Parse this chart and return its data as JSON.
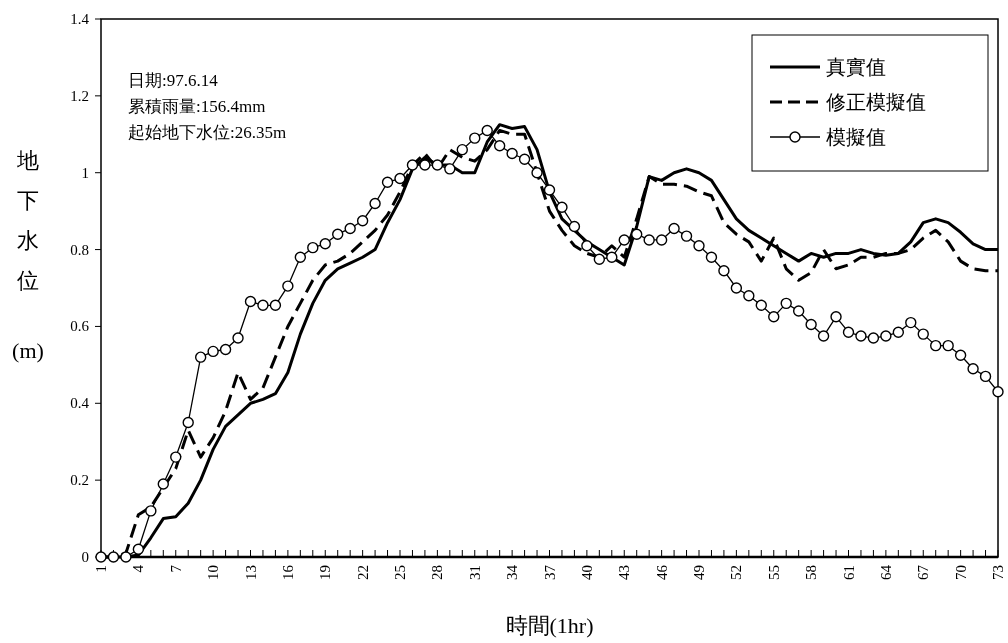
{
  "chart_data": {
    "type": "line",
    "xlabel": "時間(1hr)",
    "ylabel": "地下水位(m)",
    "annotations": [
      "日期:97.6.14",
      "累積雨量:156.4mm",
      "起始地下水位:26.35m"
    ],
    "x": [
      1,
      2,
      3,
      4,
      5,
      6,
      7,
      8,
      9,
      10,
      11,
      12,
      13,
      14,
      15,
      16,
      17,
      18,
      19,
      20,
      21,
      22,
      23,
      24,
      25,
      26,
      27,
      28,
      29,
      30,
      31,
      32,
      33,
      34,
      35,
      36,
      37,
      38,
      39,
      40,
      41,
      42,
      43,
      44,
      45,
      46,
      47,
      48,
      49,
      50,
      51,
      52,
      53,
      54,
      55,
      56,
      57,
      58,
      59,
      60,
      61,
      62,
      63,
      64,
      65,
      66,
      67,
      68,
      69,
      70,
      71,
      72,
      73
    ],
    "series": [
      {
        "name": "真實值",
        "color": "#000000",
        "marker": "none",
        "line_style": "solid",
        "values": [
          0,
          0,
          0,
          0.005,
          0.05,
          0.1,
          0.105,
          0.14,
          0.2,
          0.28,
          0.34,
          0.37,
          0.4,
          0.41,
          0.425,
          0.48,
          0.58,
          0.66,
          0.72,
          0.75,
          0.765,
          0.78,
          0.8,
          0.87,
          0.93,
          1.01,
          1.04,
          1.02,
          1.02,
          1.0,
          1.0,
          1.08,
          1.125,
          1.115,
          1.12,
          1.06,
          0.95,
          0.88,
          0.85,
          0.82,
          0.8,
          0.78,
          0.76,
          0.86,
          0.99,
          0.98,
          1.0,
          1.01,
          1.0,
          0.98,
          0.93,
          0.88,
          0.85,
          0.83,
          0.81,
          0.79,
          0.77,
          0.79,
          0.78,
          0.79,
          0.79,
          0.8,
          0.79,
          0.785,
          0.79,
          0.82,
          0.87,
          0.88,
          0.87,
          0.845,
          0.815,
          0.8,
          0.8
        ]
      },
      {
        "name": "修正模擬值",
        "color": "#000000",
        "marker": "none",
        "line_style": "dashed",
        "values": [
          0,
          0,
          0.01,
          0.11,
          0.13,
          0.18,
          0.23,
          0.33,
          0.26,
          0.31,
          0.38,
          0.48,
          0.41,
          0.44,
          0.52,
          0.6,
          0.66,
          0.72,
          0.76,
          0.77,
          0.79,
          0.82,
          0.85,
          0.89,
          0.95,
          1.02,
          1.05,
          1.01,
          1.06,
          1.04,
          1.03,
          1.06,
          1.11,
          1.1,
          1.1,
          1.0,
          0.9,
          0.85,
          0.81,
          0.79,
          0.78,
          0.81,
          0.78,
          0.88,
          0.99,
          0.97,
          0.97,
          0.965,
          0.95,
          0.94,
          0.87,
          0.84,
          0.82,
          0.77,
          0.83,
          0.75,
          0.72,
          0.74,
          0.8,
          0.75,
          0.76,
          0.78,
          0.78,
          0.79,
          0.79,
          0.8,
          0.83,
          0.85,
          0.82,
          0.77,
          0.75,
          0.745,
          0.745
        ]
      },
      {
        "name": "模擬值",
        "color": "#000000",
        "marker": "circle",
        "line_style": "solid",
        "values": [
          0,
          0,
          0,
          0.02,
          0.12,
          0.19,
          0.26,
          0.35,
          0.52,
          0.535,
          0.54,
          0.57,
          0.665,
          0.655,
          0.655,
          0.705,
          0.78,
          0.805,
          0.815,
          0.84,
          0.855,
          0.875,
          0.92,
          0.975,
          0.985,
          1.02,
          1.02,
          1.02,
          1.01,
          1.06,
          1.09,
          1.11,
          1.07,
          1.05,
          1.035,
          1.0,
          0.955,
          0.91,
          0.86,
          0.81,
          0.775,
          0.78,
          0.825,
          0.84,
          0.825,
          0.825,
          0.855,
          0.835,
          0.81,
          0.78,
          0.745,
          0.7,
          0.68,
          0.655,
          0.625,
          0.66,
          0.64,
          0.605,
          0.575,
          0.625,
          0.585,
          0.575,
          0.57,
          0.575,
          0.585,
          0.61,
          0.58,
          0.55,
          0.55,
          0.525,
          0.49,
          0.47,
          0.43
        ]
      }
    ],
    "xlim": [
      1,
      73
    ],
    "xticks": [
      1,
      {
        "value": 2,
        "label": null
      },
      {
        "value": 3,
        "label": null
      },
      4,
      {
        "value": 5,
        "label": null
      },
      {
        "value": 6,
        "label": null
      },
      7,
      {
        "value": 8,
        "label": null
      },
      {
        "value": 9,
        "label": null
      },
      10,
      {
        "value": 11,
        "label": null
      },
      {
        "value": 12,
        "label": null
      },
      13,
      {
        "value": 14,
        "label": null
      },
      {
        "value": 15,
        "label": null
      },
      16,
      {
        "value": 17,
        "label": null
      },
      {
        "value": 18,
        "label": null
      },
      19,
      {
        "value": 20,
        "label": null
      },
      {
        "value": 21,
        "label": null
      },
      22,
      {
        "value": 23,
        "label": null
      },
      {
        "value": 24,
        "label": null
      },
      25,
      {
        "value": 26,
        "label": null
      },
      {
        "value": 27,
        "label": null
      },
      28,
      {
        "value": 29,
        "label": null
      },
      {
        "value": 30,
        "label": null
      },
      31,
      {
        "value": 32,
        "label": null
      },
      {
        "value": 33,
        "label": null
      },
      34,
      {
        "value": 35,
        "label": null
      },
      {
        "value": 36,
        "label": null
      },
      37,
      {
        "value": 38,
        "label": null
      },
      {
        "value": 39,
        "label": null
      },
      40,
      {
        "value": 41,
        "label": null
      },
      {
        "value": 42,
        "label": null
      },
      43,
      {
        "value": 44,
        "label": null
      },
      {
        "value": 45,
        "label": null
      },
      46,
      {
        "value": 47,
        "label": null
      },
      {
        "value": 48,
        "label": null
      },
      49,
      {
        "value": 50,
        "label": null
      },
      {
        "value": 51,
        "label": null
      },
      52,
      {
        "value": 53,
        "label": null
      },
      {
        "value": 54,
        "label": null
      },
      55,
      {
        "value": 56,
        "label": null
      },
      {
        "value": 57,
        "label": null
      },
      58,
      {
        "value": 59,
        "label": null
      },
      {
        "value": 60,
        "label": null
      },
      61,
      {
        "value": 62,
        "label": null
      },
      {
        "value": 63,
        "label": null
      },
      64,
      {
        "value": 65,
        "label": null
      },
      {
        "value": 66,
        "label": null
      },
      67,
      {
        "value": 68,
        "label": null
      },
      {
        "value": 69,
        "label": null
      },
      70,
      {
        "value": 71,
        "label": null
      },
      {
        "value": 72,
        "label": null
      },
      73
    ],
    "ylim": [
      0,
      1.4
    ],
    "yticks": [
      0,
      0.2,
      0.4,
      0.6,
      0.8,
      1,
      1.2,
      1.4
    ],
    "grid": false,
    "legend": "top right"
  }
}
